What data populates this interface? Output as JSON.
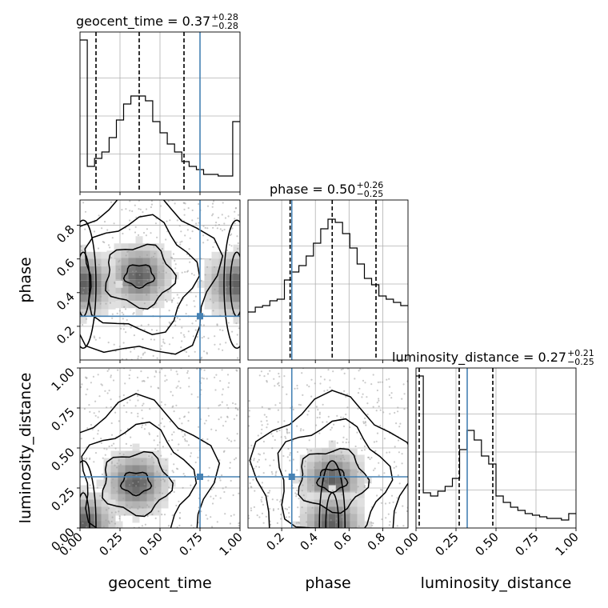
{
  "chart_data": {
    "type": "corner",
    "parameters": [
      "geocent_time",
      "phase",
      "luminosity_distance"
    ],
    "truths": {
      "geocent_time": 0.75,
      "phase": 0.26,
      "luminosity_distance": 0.32
    },
    "ranges": {
      "geocent_time": [
        0.0,
        1.0
      ],
      "phase": [
        0.0,
        0.95
      ],
      "luminosity_distance": [
        0.0,
        1.0
      ]
    },
    "titles": [
      {
        "param": "geocent_time",
        "prefix": "geocent_time = 0.37",
        "plus": "+0.28",
        "minus": "−0.28"
      },
      {
        "param": "phase",
        "prefix": "phase = 0.50",
        "plus": "+0.26",
        "minus": "−0.25"
      },
      {
        "param": "luminosity_distance",
        "prefix": "luminosity_distance = 0.27",
        "plus": "+0.21",
        "minus": "−0.25"
      }
    ],
    "xlabels": [
      "geocent_time",
      "phase",
      "luminosity_distance"
    ],
    "ylabels": [
      "phase",
      "luminosity_distance"
    ],
    "ticks": {
      "geocent_time": {
        "values": [
          0.0,
          0.25,
          0.5,
          0.75,
          1.0
        ],
        "labels": [
          "0.00",
          "0.25",
          "0.50",
          "0.75",
          "1.00"
        ]
      },
      "phase": {
        "values": [
          0.2,
          0.4,
          0.6,
          0.8
        ],
        "labels": [
          "0.2",
          "0.4",
          "0.6",
          "0.8"
        ]
      },
      "luminosity_distance": {
        "values": [
          0.0,
          0.25,
          0.5,
          0.75,
          1.0
        ],
        "labels": [
          "0.00",
          "0.25",
          "0.50",
          "0.75",
          "1.00"
        ]
      }
    },
    "quantiles": {
      "geocent_time": [
        0.1,
        0.37,
        0.65
      ],
      "phase": [
        0.25,
        0.5,
        0.76
      ],
      "luminosity_distance": [
        0.02,
        0.27,
        0.48
      ]
    },
    "histograms": {
      "geocent_time": {
        "edges_range": [
          0.0,
          1.0
        ],
        "counts": [
          0.95,
          0.16,
          0.21,
          0.25,
          0.34,
          0.45,
          0.55,
          0.6,
          0.6,
          0.57,
          0.44,
          0.37,
          0.3,
          0.25,
          0.19,
          0.16,
          0.14,
          0.11,
          0.11,
          0.1,
          0.1,
          0.44
        ]
      },
      "phase": {
        "edges_range": [
          0.0,
          0.95
        ],
        "counts": [
          0.3,
          0.33,
          0.34,
          0.37,
          0.38,
          0.5,
          0.55,
          0.59,
          0.65,
          0.73,
          0.82,
          0.88,
          0.86,
          0.79,
          0.7,
          0.6,
          0.51,
          0.47,
          0.4,
          0.38,
          0.36,
          0.34
        ]
      },
      "luminosity_distance": {
        "edges_range": [
          0.0,
          1.0
        ],
        "counts": [
          0.95,
          0.22,
          0.2,
          0.23,
          0.26,
          0.31,
          0.49,
          0.61,
          0.55,
          0.45,
          0.4,
          0.2,
          0.16,
          0.13,
          0.11,
          0.09,
          0.08,
          0.07,
          0.06,
          0.06,
          0.05,
          0.09
        ]
      }
    },
    "density_peaks": {
      "phase_vs_geocent_time": [
        {
          "x": 0.37,
          "y": 0.5,
          "label": "central mode"
        },
        {
          "x": 0.02,
          "y": 0.45,
          "label": "left-edge mode"
        },
        {
          "x": 0.98,
          "y": 0.45,
          "label": "right-edge mode"
        }
      ],
      "luminosity_distance_vs_geocent_time": [
        {
          "x": 0.35,
          "y": 0.28,
          "label": "central mode"
        },
        {
          "x": 0.02,
          "y": 0.02,
          "label": "edge mode"
        }
      ],
      "luminosity_distance_vs_phase": [
        {
          "x": 0.5,
          "y": 0.3,
          "label": "central mode"
        },
        {
          "x": 0.5,
          "y": 0.02,
          "label": "low-distance band"
        }
      ]
    },
    "grid": true,
    "colors": {
      "hist": "#000000",
      "truth": "#4682b4",
      "contour": "#000000",
      "points": "#9e9e9e",
      "grid": "#b0b0b0"
    }
  }
}
